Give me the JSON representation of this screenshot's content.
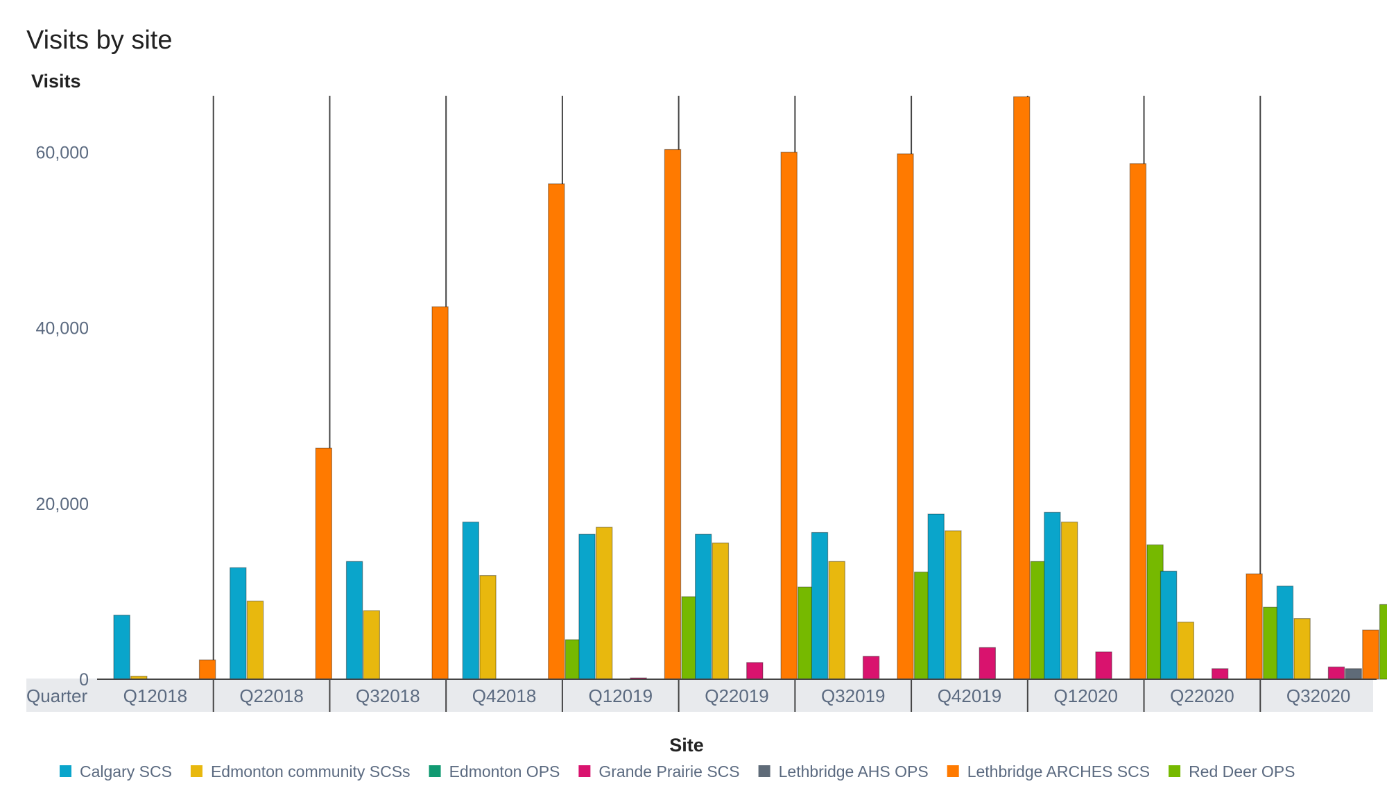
{
  "chart_data": {
    "type": "bar",
    "title": "Visits by site",
    "ylabel": "Visits",
    "xlabel": "Quarter",
    "legend_title": "Site",
    "legend_position": "bottom",
    "ylim": [
      0,
      68000
    ],
    "yticks": [
      0,
      20000,
      40000,
      60000
    ],
    "ytick_labels": [
      "0",
      "20,000",
      "40,000",
      "60,000"
    ],
    "categories": [
      "Q12018",
      "Q22018",
      "Q32018",
      "Q42018",
      "Q12019",
      "Q22019",
      "Q32019",
      "Q42019",
      "Q12020",
      "Q22020",
      "Q32020"
    ],
    "series": [
      {
        "name": "Calgary SCS",
        "color": "#0aa5cb",
        "values": [
          7300,
          12700,
          13400,
          17900,
          16500,
          16500,
          16700,
          18800,
          19000,
          12300,
          10600
        ]
      },
      {
        "name": "Edmonton community SCSs",
        "color": "#e8b80e",
        "values": [
          350,
          8900,
          7800,
          11800,
          17300,
          15500,
          13400,
          16900,
          17900,
          6500,
          6900
        ]
      },
      {
        "name": "Edmonton OPS",
        "color": "#119a72",
        "values": [
          0,
          0,
          0,
          0,
          0,
          0,
          0,
          0,
          0,
          0,
          0
        ]
      },
      {
        "name": "Grande Prairie SCS",
        "color": "#d9136e",
        "values": [
          0,
          0,
          0,
          0,
          150,
          1900,
          2600,
          3600,
          3100,
          1200,
          1400
        ]
      },
      {
        "name": "Lethbridge AHS OPS",
        "color": "#5f6b78",
        "values": [
          0,
          0,
          0,
          0,
          0,
          0,
          0,
          0,
          0,
          0,
          1200
        ]
      },
      {
        "name": "Lethbridge ARCHES SCS",
        "color": "#ff7a00",
        "values": [
          2200,
          26300,
          42400,
          56400,
          60300,
          60000,
          59800,
          66300,
          58700,
          12000,
          5600
        ]
      },
      {
        "name": "Red Deer OPS",
        "color": "#76b900",
        "values": [
          0,
          0,
          0,
          4500,
          9400,
          10500,
          12200,
          13400,
          15300,
          8200,
          8500
        ]
      }
    ]
  }
}
